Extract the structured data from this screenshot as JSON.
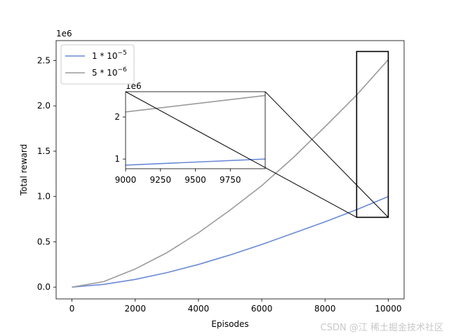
{
  "chart_data": {
    "type": "line",
    "xlabel": "Episodes",
    "ylabel": "Total reward",
    "y_offset_label": "1e6",
    "xlim": [
      -500,
      10500
    ],
    "ylim": [
      -0.13,
      2.72
    ],
    "x_ticks": [
      0,
      2000,
      4000,
      6000,
      8000,
      10000
    ],
    "x_tick_labels": [
      "0",
      "2000",
      "4000",
      "6000",
      "8000",
      "10000"
    ],
    "y_ticks": [
      0.0,
      0.5,
      1.0,
      1.5,
      2.0,
      2.5
    ],
    "y_tick_labels": [
      "0.0",
      "0.5",
      "1.0",
      "1.5",
      "2.0",
      "2.5"
    ],
    "grid": false,
    "legend_position": "upper-left",
    "series": [
      {
        "name": "1*10^-5",
        "legend_base": "1 * 10",
        "legend_exp": "−5",
        "color": "#6a8ad6",
        "x": [
          0,
          1000,
          2000,
          3000,
          4000,
          5000,
          6000,
          7000,
          8000,
          9000,
          10000
        ],
        "y": [
          0.0,
          0.03,
          0.085,
          0.16,
          0.25,
          0.355,
          0.47,
          0.595,
          0.72,
          0.855,
          1.0
        ]
      },
      {
        "name": "5*10^-6",
        "legend_base": "5 * 10",
        "legend_exp": "−6",
        "color": "#9b9b9b",
        "x": [
          0,
          1000,
          2000,
          3000,
          4000,
          5000,
          6000,
          7000,
          8000,
          9000,
          10000
        ],
        "y": [
          0.0,
          0.06,
          0.2,
          0.38,
          0.6,
          0.85,
          1.12,
          1.43,
          1.77,
          2.12,
          2.51
        ]
      }
    ],
    "zoom_box": {
      "x": [
        9000,
        10000
      ],
      "y": [
        0.77,
        2.6
      ]
    },
    "inset": {
      "y_offset_label": "1e6",
      "xlim": [
        9000,
        10000
      ],
      "ylim": [
        0.77,
        2.6
      ],
      "x_ticks": [
        9000,
        9250,
        9500,
        9750
      ],
      "x_tick_labels": [
        "9000",
        "9250",
        "9500",
        "9750"
      ],
      "y_ticks": [
        1,
        2
      ],
      "y_tick_labels": [
        "1",
        "2"
      ],
      "series": [
        {
          "name": "1*10^-5",
          "color": "#6a8ad6",
          "x": [
            9000,
            10000
          ],
          "y": [
            0.855,
            1.0
          ]
        },
        {
          "name": "5*10^-6",
          "color": "#9b9b9b",
          "x": [
            9000,
            10000
          ],
          "y": [
            2.12,
            2.51
          ]
        }
      ]
    }
  },
  "watermark": "CSDN @江 稀土掘金技术社区"
}
